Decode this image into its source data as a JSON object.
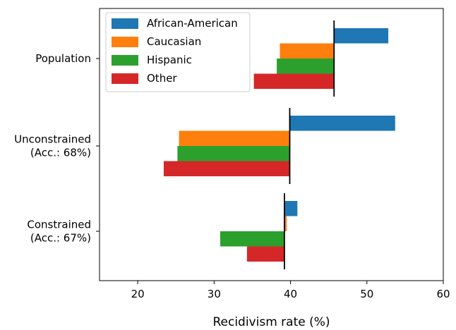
{
  "chart_data": {
    "type": "bar",
    "orientation": "horizontal",
    "xlabel": "Recidivism rate (%)",
    "xlim": [
      15,
      60
    ],
    "xticks": [
      "20",
      "30",
      "40",
      "50",
      "60"
    ],
    "legend_placement": "top-left",
    "series": [
      {
        "name": "African-American",
        "color": "#1f77b4"
      },
      {
        "name": "Caucasian",
        "color": "#ff7f0e"
      },
      {
        "name": "Hispanic",
        "color": "#2ca02c"
      },
      {
        "name": "Other",
        "color": "#d62728"
      }
    ],
    "groups": [
      {
        "label_lines": [
          "Population"
        ],
        "baseline": 45.7,
        "values": [
          52.8,
          38.6,
          38.2,
          35.2
        ]
      },
      {
        "label_lines": [
          "Unconstrained",
          "(Acc.: 68%)"
        ],
        "baseline": 39.9,
        "values": [
          53.7,
          25.4,
          25.2,
          23.4
        ]
      },
      {
        "label_lines": [
          "Constrained",
          "(Acc.: 67%)"
        ],
        "baseline": 39.2,
        "values": [
          40.9,
          39.5,
          30.8,
          34.3
        ]
      }
    ]
  }
}
